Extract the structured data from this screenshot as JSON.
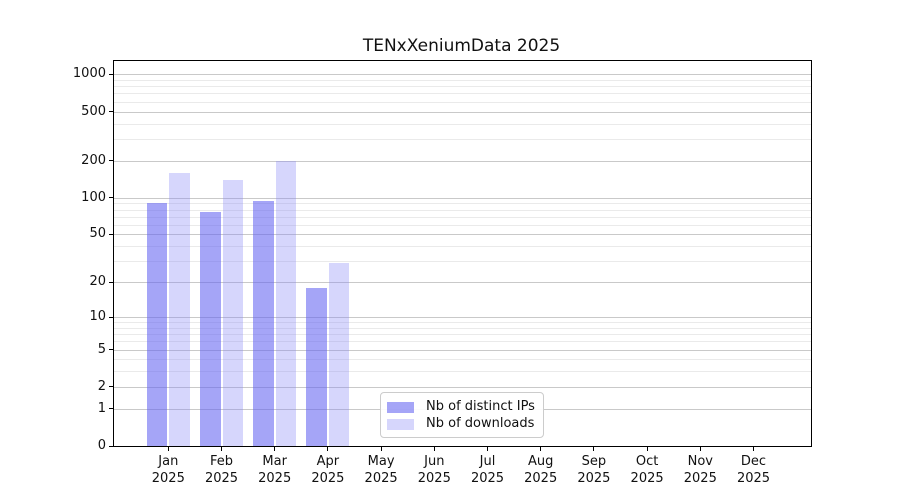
{
  "chart_data": {
    "type": "bar",
    "title": "TENxXeniumData 2025",
    "categories": [
      "Jan",
      "Feb",
      "Mar",
      "Apr",
      "May",
      "Jun",
      "Jul",
      "Aug",
      "Sep",
      "Oct",
      "Nov",
      "Dec"
    ],
    "year_label": "2025",
    "series": [
      {
        "name": "Nb of distinct IPs",
        "color": "rgba(100,100,242,0.58)",
        "values": [
          91,
          76,
          94,
          18,
          0,
          0,
          0,
          0,
          0,
          0,
          0,
          0
        ]
      },
      {
        "name": "Nb of downloads",
        "color": "rgba(130,130,245,0.33)",
        "values": [
          160,
          140,
          199,
          29,
          0,
          0,
          0,
          0,
          0,
          0,
          0,
          0
        ]
      }
    ],
    "yscale": "log1p",
    "yticks": [
      0,
      1,
      2,
      5,
      10,
      20,
      50,
      100,
      200,
      500,
      1000
    ],
    "yticks_minor": [
      3,
      4,
      6,
      7,
      8,
      9,
      30,
      40,
      60,
      70,
      80,
      90,
      300,
      400,
      600,
      700,
      800,
      900
    ],
    "ylim": [
      0,
      1280
    ],
    "xlabel": "",
    "ylabel": "",
    "grid": true,
    "legend_position": "lower center",
    "grid_major_color": "#c9c9c9",
    "grid_minor_color": "#eaeaea"
  }
}
